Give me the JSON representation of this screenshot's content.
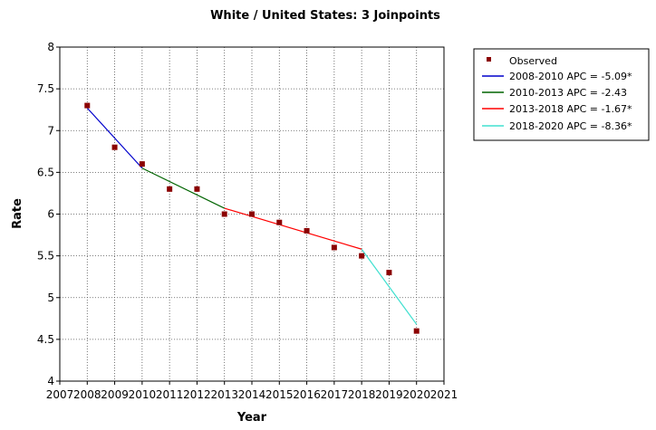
{
  "chart_data": {
    "type": "line",
    "title": "White / United States: 3 Joinpoints",
    "xlabel": "Year",
    "ylabel": "Rate",
    "xlim": [
      2007,
      2021
    ],
    "ylim": [
      4,
      8
    ],
    "x_ticks": [
      "2007",
      "2008",
      "2009",
      "2010",
      "2011",
      "2012",
      "2013",
      "2014",
      "2015",
      "2016",
      "2017",
      "2018",
      "2019",
      "2020",
      "2021"
    ],
    "y_ticks": [
      "4",
      "4.5",
      "5",
      "5.5",
      "6",
      "6.5",
      "7",
      "7.5",
      "8"
    ],
    "grid": true,
    "legend_position": "top-right outside",
    "observed": {
      "name": "Observed",
      "color": "#8b0000",
      "x": [
        2008,
        2009,
        2010,
        2011,
        2012,
        2013,
        2014,
        2015,
        2016,
        2017,
        2018,
        2019,
        2020
      ],
      "y": [
        7.3,
        6.8,
        6.6,
        6.3,
        6.3,
        6.0,
        6.0,
        5.9,
        5.8,
        5.6,
        5.5,
        5.3,
        4.6
      ]
    },
    "series": [
      {
        "name": "2008-2010 APC  = -5.09*",
        "color": "#0000cc",
        "x": [
          2008,
          2010
        ],
        "y": [
          7.27,
          6.55
        ]
      },
      {
        "name": "2010-2013 APC  = -2.43",
        "color": "#006400",
        "x": [
          2010,
          2013
        ],
        "y": [
          6.55,
          6.07
        ]
      },
      {
        "name": "2013-2018 APC  = -1.67*",
        "color": "#ff0000",
        "x": [
          2013,
          2018
        ],
        "y": [
          6.07,
          5.58
        ]
      },
      {
        "name": "2018-2020 APC  = -8.36*",
        "color": "#40e0d0",
        "x": [
          2018,
          2020
        ],
        "y": [
          5.58,
          4.68
        ]
      }
    ]
  }
}
